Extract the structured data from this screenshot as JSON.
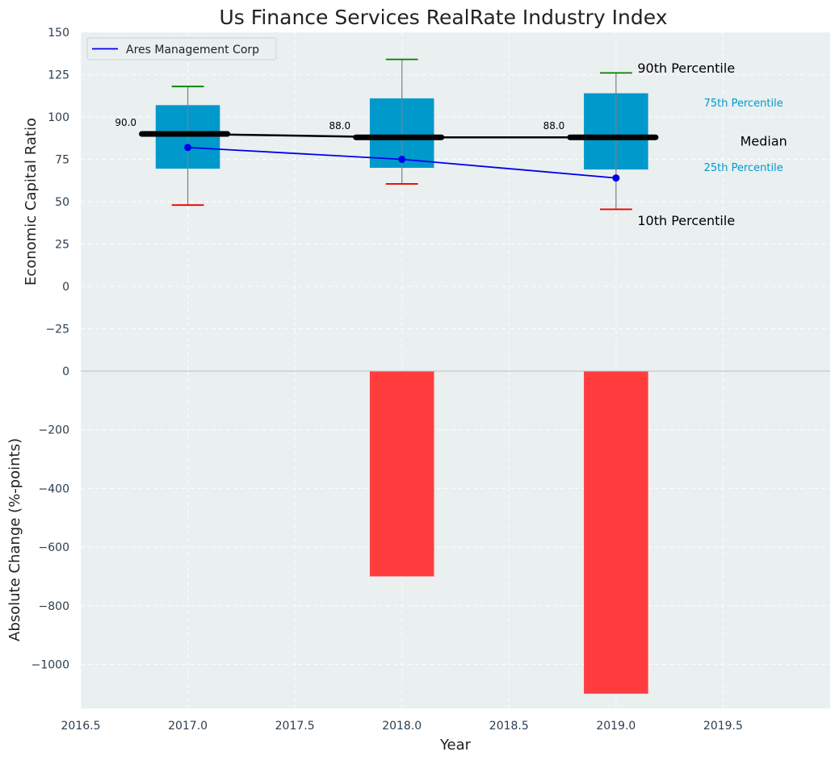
{
  "chart_data": [
    {
      "type": "box",
      "title": "Us Finance Services RealRate Industry Index",
      "xlabel": "",
      "ylabel": "Economic Capital Ratio",
      "xlim": [
        2016.5,
        2020.0
      ],
      "ylim": [
        -50,
        150
      ],
      "x_ticks": [
        "2016.5",
        "2017.0",
        "2017.5",
        "2018.0",
        "2018.5",
        "2019.0",
        "2019.5"
      ],
      "y_ticks": [
        "150",
        "125",
        "100",
        "75",
        "50",
        "25",
        "0",
        "−25"
      ],
      "grid": true,
      "legend": {
        "position": "top-left",
        "entries": [
          "Ares Management Corp"
        ]
      },
      "boxes": [
        {
          "x": 2017,
          "p10": 48,
          "p25": 69.5,
          "median": 90,
          "p75": 107,
          "p90": 118,
          "median_label": "90.0"
        },
        {
          "x": 2018,
          "p10": 60.5,
          "p25": 70,
          "median": 88,
          "p75": 111,
          "p90": 134,
          "median_label": "88.0"
        },
        {
          "x": 2019,
          "p10": 45.5,
          "p25": 69,
          "median": 88,
          "p75": 114,
          "p90": 126,
          "median_label": "88.0"
        }
      ],
      "series": [
        {
          "name": "Ares Management Corp",
          "x": [
            2017,
            2018,
            2019
          ],
          "values": [
            82,
            75,
            64
          ],
          "color": "#0000ee"
        }
      ],
      "annotations": {
        "p90": "90th Percentile",
        "p75": "75th Percentile",
        "median": "Median",
        "p25": "25th Percentile",
        "p10": "10th Percentile"
      },
      "colors": {
        "box": "#0099cc",
        "median": "#000000",
        "p90_cap": "#008000",
        "p10_cap": "#ee0000",
        "background": "#eaeff0"
      }
    },
    {
      "type": "bar",
      "xlabel": "Year",
      "ylabel": "Absolute Change (%-points)",
      "xlim": [
        2016.5,
        2020.0
      ],
      "ylim": [
        -1150,
        0
      ],
      "x_ticks": [
        "2016.5",
        "2017.0",
        "2017.5",
        "2018.0",
        "2018.5",
        "2019.0",
        "2019.5"
      ],
      "y_ticks": [
        "0",
        "−200",
        "−400",
        "−600",
        "−800",
        "−1000"
      ],
      "grid": true,
      "x": [
        2018,
        2019
      ],
      "values": [
        -700,
        -1100
      ],
      "colors": {
        "bar": "#ff3d3f",
        "background": "#eaeff0"
      }
    }
  ]
}
